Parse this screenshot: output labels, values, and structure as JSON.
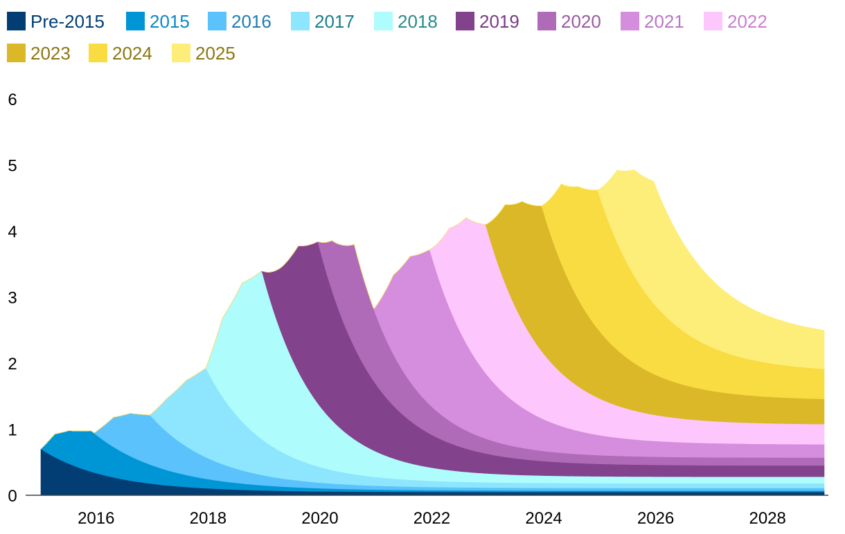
{
  "chart_data": {
    "type": "area",
    "stacked": true,
    "title": "",
    "xlabel": "",
    "ylabel": "",
    "xlim": [
      2015,
      2029
    ],
    "ylim": [
      0,
      6.2
    ],
    "x_ticks": [
      "2016",
      "2018",
      "2020",
      "2022",
      "2024",
      "2026",
      "2028"
    ],
    "y_ticks": [
      "0",
      "1",
      "2",
      "3",
      "4",
      "5",
      "6"
    ],
    "legend_position": "top",
    "series": [
      {
        "name": "Pre-2015",
        "color": "#023e73",
        "label_color": "#023e73",
        "start": 2015,
        "peak_x": 2015,
        "peak": 0.7,
        "end": 0.05,
        "rise": [
          [
            2015.0,
            0.7
          ]
        ],
        "decay": 1.2
      },
      {
        "name": "2015",
        "color": "#0096d6",
        "label_color": "#0a88c4",
        "start": 2015,
        "peak_x": 2015.9,
        "peak": 0.62,
        "end": 0.02,
        "rise": [
          [
            2015.0,
            0.0
          ],
          [
            2015.25,
            0.35
          ],
          [
            2015.5,
            0.5
          ],
          [
            2015.9,
            0.62
          ]
        ],
        "decay": 1.3
      },
      {
        "name": "2016",
        "color": "#5bc2fb",
        "label_color": "#1f7db0",
        "start": 2015.95,
        "peak_x": 2016.95,
        "peak": 0.75,
        "end": 0.04,
        "rise": [
          [
            2015.95,
            0.0
          ],
          [
            2016.3,
            0.45
          ],
          [
            2016.6,
            0.65
          ],
          [
            2016.95,
            0.75
          ]
        ],
        "decay": 1.1
      },
      {
        "name": "2017",
        "color": "#8de6fd",
        "label_color": "#1b7d8a",
        "start": 2016.95,
        "peak_x": 2017.95,
        "peak": 1.35,
        "end": 0.07,
        "rise": [
          [
            2016.95,
            0.0
          ],
          [
            2017.25,
            0.5
          ],
          [
            2017.6,
            1.0
          ],
          [
            2017.95,
            1.35
          ]
        ],
        "decay": 1.0
      },
      {
        "name": "2018",
        "color": "#aefcfc",
        "label_color": "#2a8a8a",
        "start": 2017.95,
        "peak_x": 2018.95,
        "peak": 2.55,
        "end": 0.1,
        "rise": [
          [
            2017.95,
            0.0
          ],
          [
            2018.25,
            1.2
          ],
          [
            2018.6,
            2.1
          ],
          [
            2018.95,
            2.55
          ]
        ],
        "decay": 0.95
      },
      {
        "name": "2019",
        "color": "#82428c",
        "label_color": "#7a3a85",
        "start": 2018.95,
        "peak_x": 2019.95,
        "peak": 2.45,
        "end": 0.17,
        "rise": [
          [
            2018.95,
            0.0
          ],
          [
            2019.3,
            1.0
          ],
          [
            2019.6,
            1.9
          ],
          [
            2019.95,
            2.45
          ]
        ],
        "decay": 1.05
      },
      {
        "name": "2020",
        "color": "#b06bb8",
        "label_color": "#9a5aa3",
        "start": 2019.95,
        "peak_x": 2020.6,
        "peak": 1.55,
        "end": 0.12,
        "rise": [
          [
            2019.95,
            0.0
          ],
          [
            2020.2,
            0.75
          ],
          [
            2020.6,
            1.55
          ]
        ],
        "decay": 0.9
      },
      {
        "name": "2021",
        "color": "#d58ddd",
        "label_color": "#b977c4",
        "start": 2020.95,
        "peak_x": 2021.95,
        "peak": 2.35,
        "end": 0.2,
        "rise": [
          [
            2020.95,
            0.0
          ],
          [
            2021.3,
            1.2
          ],
          [
            2021.6,
            1.9
          ],
          [
            2021.95,
            2.35
          ]
        ],
        "decay": 1.0
      },
      {
        "name": "2022",
        "color": "#fdc7fd",
        "label_color": "#c97dcf",
        "start": 2021.95,
        "peak_x": 2022.95,
        "peak": 2.25,
        "end": 0.3,
        "rise": [
          [
            2021.95,
            0.0
          ],
          [
            2022.3,
            1.2
          ],
          [
            2022.6,
            1.9
          ],
          [
            2022.95,
            2.25
          ]
        ],
        "decay": 1.0
      },
      {
        "name": "2023",
        "color": "#dbb828",
        "label_color": "#8c7610",
        "start": 2022.95,
        "peak_x": 2023.95,
        "peak": 2.2,
        "end": 0.37,
        "rise": [
          [
            2022.95,
            0.0
          ],
          [
            2023.3,
            1.2
          ],
          [
            2023.6,
            1.8
          ],
          [
            2023.95,
            2.2
          ]
        ],
        "decay": 1.0
      },
      {
        "name": "2024",
        "color": "#f9db42",
        "label_color": "#8c7610",
        "start": 2023.95,
        "peak_x": 2024.95,
        "peak": 2.1,
        "end": 0.42,
        "rise": [
          [
            2023.95,
            0.0
          ],
          [
            2024.3,
            1.2
          ],
          [
            2024.6,
            1.7
          ],
          [
            2024.95,
            2.1
          ]
        ],
        "decay": 1.05
      },
      {
        "name": "2025",
        "color": "#fdee7a",
        "label_color": "#8c7610",
        "start": 2024.95,
        "peak_x": 2025.95,
        "peak": 1.85,
        "end": 0.5,
        "rise": [
          [
            2024.95,
            0.0
          ],
          [
            2025.3,
            1.1
          ],
          [
            2025.6,
            1.6
          ],
          [
            2025.95,
            1.85
          ]
        ],
        "decay": 1.1
      }
    ]
  }
}
